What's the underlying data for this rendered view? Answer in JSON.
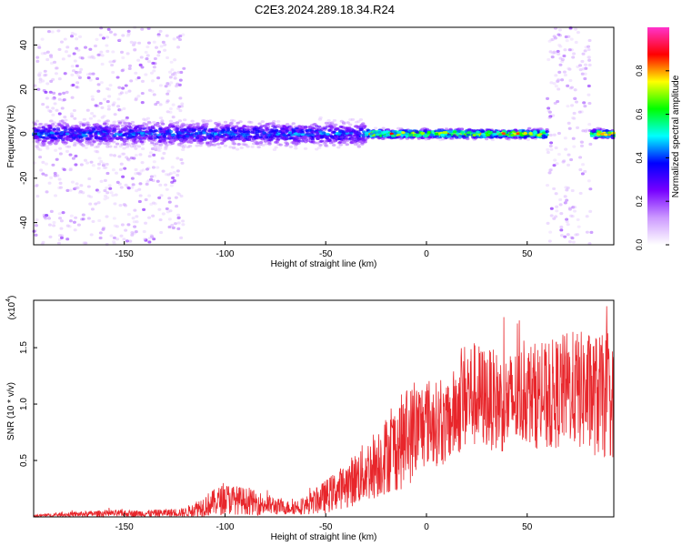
{
  "title": "C2E3.2024.289.18.34.R24",
  "chart_data": [
    {
      "type": "heatmap",
      "xlabel": "Height of straight line (km)",
      "ylabel": "Frequency (Hz)",
      "xlim": [
        -195,
        93
      ],
      "ylim": [
        -50,
        48
      ],
      "x_ticks": [
        -150,
        -100,
        -50,
        0,
        50
      ],
      "y_ticks": [
        -40,
        -20,
        0,
        20,
        40
      ],
      "colorbar": {
        "label": "Normalized spectral amplitude",
        "lim": [
          0,
          1
        ],
        "ticks": [
          "0.0",
          "0.2",
          "0.4",
          "0.6",
          "0.8"
        ],
        "colormap": [
          "#ffffff",
          "#cc99ff",
          "#7700ff",
          "#0000ff",
          "#00ffff",
          "#00ff00",
          "#ffff00",
          "#ff0000",
          "#ff33cc"
        ]
      },
      "features": [
        {
          "x_range": [
            -195,
            -120
          ],
          "description_values": {
            "scatter_freq_range": [
              -50,
              48
            ],
            "amplitude": 0.1
          }
        },
        {
          "x_range": [
            -195,
            -30
          ],
          "center_freq": 0,
          "band_halfwidth": 8,
          "peak_amplitude": 0.5
        },
        {
          "x_range": [
            -30,
            60
          ],
          "center_freq": 0,
          "band_halfwidth": 3,
          "peak_amplitude": 0.9
        },
        {
          "x_range": [
            60,
            82
          ],
          "scatter_freq_range": [
            -50,
            48
          ],
          "amplitude": 0.15
        },
        {
          "x_range": [
            82,
            93
          ],
          "center_freq": 0,
          "band_halfwidth": 3,
          "peak_amplitude": 0.9
        }
      ]
    },
    {
      "type": "line",
      "xlabel": "Height of straight line (km)",
      "ylabel": "SNR (10 * v/v)",
      "y_multiplier": "(x10",
      "y_multiplier_exp": "4",
      "y_multiplier_close": ")",
      "xlim": [
        -195,
        93
      ],
      "ylim": [
        0,
        1.92
      ],
      "x_ticks": [
        -150,
        -100,
        -50,
        0,
        50
      ],
      "y_ticks": [
        "0.5",
        "1.0",
        "1.5"
      ],
      "y_tick_values": [
        0.5,
        1.0,
        1.5
      ],
      "color": "#e8262b",
      "series": [
        {
          "x": [
            -195,
            -180,
            -160,
            -140,
            -120,
            -110,
            -100,
            -90,
            -80,
            -70,
            -60,
            -50,
            -40,
            -30,
            -20,
            -10,
            0,
            10,
            20,
            30,
            40,
            50,
            60,
            70,
            80,
            90,
            93
          ],
          "y": [
            0.01,
            0.02,
            0.03,
            0.03,
            0.04,
            0.1,
            0.16,
            0.14,
            0.11,
            0.08,
            0.1,
            0.18,
            0.28,
            0.4,
            0.55,
            0.7,
            0.85,
            0.8,
            1.1,
            1.05,
            1.0,
            1.1,
            1.05,
            1.15,
            1.1,
            1.05,
            1.0
          ],
          "spread": [
            0.01,
            0.02,
            0.03,
            0.03,
            0.04,
            0.1,
            0.14,
            0.12,
            0.1,
            0.06,
            0.08,
            0.15,
            0.2,
            0.28,
            0.35,
            0.45,
            0.4,
            0.35,
            0.5,
            0.45,
            0.45,
            0.45,
            0.5,
            0.5,
            0.55,
            0.55,
            0.5
          ]
        }
      ]
    }
  ]
}
